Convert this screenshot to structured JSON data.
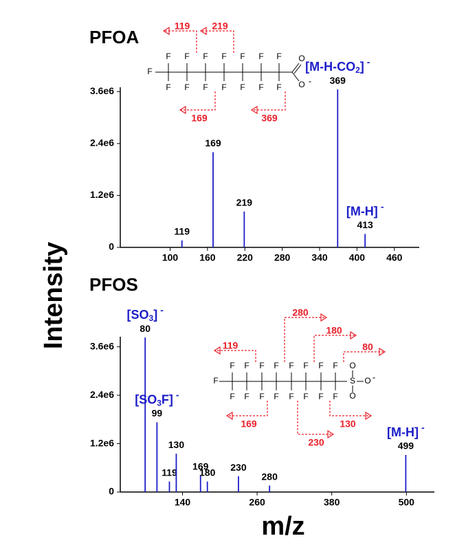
{
  "chart_data": [
    {
      "type": "stick",
      "title": "PFOA",
      "y_label": "Intensity",
      "x": [
        119,
        169,
        219,
        369,
        413
      ],
      "values": [
        160000,
        2200000,
        830000,
        3650000,
        310000
      ],
      "ion_labels": [
        null,
        null,
        null,
        {
          "text": "[M-H-CO",
          "sub": "2",
          "end": "]",
          "charge": "-"
        },
        {
          "text": "[M-H]",
          "sub": null,
          "end": null,
          "charge": "-"
        }
      ],
      "color": "#1c1cc8",
      "label_color": "#1c1cc8",
      "xlim": [
        20,
        500
      ],
      "xticks": [
        100,
        160,
        220,
        280,
        340,
        400,
        460
      ],
      "ylim": [
        0,
        3700000
      ],
      "yticks": [
        0,
        {
          "value": 1200000,
          "label": "1.2e6"
        },
        {
          "value": 2400000,
          "label": "2.4e6"
        },
        {
          "value": 3600000,
          "label": "3.6e6"
        }
      ],
      "structure": {
        "substituent": "F",
        "oxygen": "O",
        "charge": "-",
        "fragments": [
          119,
          219,
          169,
          369
        ],
        "color": "#e8202a"
      }
    },
    {
      "type": "stick",
      "title": "PFOS",
      "x_label": "m/z",
      "x": [
        80,
        99,
        119,
        130,
        169,
        180,
        230,
        280,
        499
      ],
      "values": [
        3830000,
        1730000,
        260000,
        950000,
        410000,
        260000,
        390000,
        160000,
        920000
      ],
      "ion_labels": [
        {
          "text": "[SO",
          "sub": "3",
          "end": "]",
          "charge": "-"
        },
        {
          "text": "[SO",
          "sub": "3",
          "end": "F]",
          "charge": "-"
        },
        null,
        null,
        null,
        null,
        null,
        null,
        {
          "text": "[M-H]",
          "sub": null,
          "end": null,
          "charge": "-"
        }
      ],
      "color": "#1c1cc8",
      "label_color": "#1c1cc8",
      "xlim": [
        40,
        545
      ],
      "xticks": [
        140,
        260,
        380,
        500
      ],
      "ylim": [
        0,
        3850000
      ],
      "yticks": [
        0,
        {
          "value": 1200000,
          "label": "1.2e6"
        },
        {
          "value": 2400000,
          "label": "2.4e6"
        },
        {
          "value": 3600000,
          "label": "3.6e6"
        }
      ],
      "structure": {
        "substituent": "F",
        "oxygen": "O",
        "sulfur": "S",
        "charge": "-",
        "fragments": [
          119,
          280,
          180,
          80,
          169,
          230,
          130
        ],
        "color": "#e8202a"
      }
    }
  ]
}
